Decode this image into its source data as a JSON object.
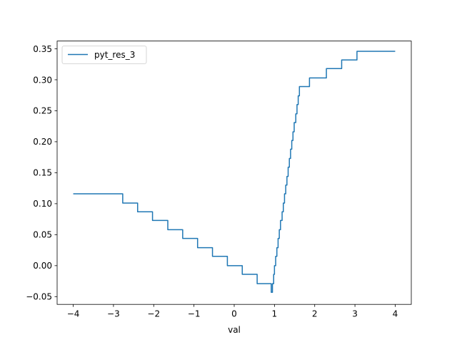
{
  "chart_data": {
    "type": "line",
    "title": "",
    "xlabel": "val",
    "ylabel": "",
    "xlim": [
      -4.4,
      4.4
    ],
    "ylim": [
      -0.0625,
      0.3625
    ],
    "xticks": [
      -4,
      -3,
      -2,
      -1,
      0,
      1,
      2,
      3,
      4
    ],
    "xtick_labels": [
      "−4",
      "−3",
      "−2",
      "−1",
      "0",
      "1",
      "2",
      "3",
      "4"
    ],
    "yticks": [
      -0.05,
      0.0,
      0.05,
      0.1,
      0.15,
      0.2,
      0.25,
      0.3,
      0.35
    ],
    "ytick_labels": [
      "−0.05",
      "0.00",
      "0.05",
      "0.10",
      "0.15",
      "0.20",
      "0.25",
      "0.30",
      "0.35"
    ],
    "grid": false,
    "legend_position": "upper-left",
    "series": [
      {
        "name": "pyt_res_3",
        "color": "#1f77b4",
        "step": "post",
        "x": [
          -4.0,
          -2.77,
          -2.4,
          -2.03,
          -1.65,
          -1.28,
          -0.91,
          -0.54,
          -0.17,
          0.2,
          0.57,
          0.92,
          0.95,
          0.98,
          1.0,
          1.03,
          1.06,
          1.09,
          1.12,
          1.15,
          1.19,
          1.22,
          1.25,
          1.28,
          1.31,
          1.34,
          1.37,
          1.4,
          1.43,
          1.46,
          1.49,
          1.53,
          1.56,
          1.59,
          1.62,
          1.65,
          1.68,
          1.71,
          1.87,
          2.29,
          2.67,
          3.05,
          4.0
        ],
        "y": [
          0.116,
          0.101,
          0.087,
          0.073,
          0.058,
          0.044,
          0.029,
          0.015,
          0.0,
          -0.014,
          -0.029,
          -0.043,
          -0.029,
          -0.014,
          0.0,
          0.015,
          0.029,
          0.044,
          0.058,
          0.073,
          0.087,
          0.101,
          0.116,
          0.13,
          0.144,
          0.159,
          0.173,
          0.188,
          0.202,
          0.216,
          0.231,
          0.245,
          0.26,
          0.274,
          0.289,
          0.289,
          0.289,
          0.289,
          0.303,
          0.318,
          0.332,
          0.346,
          0.346
        ]
      }
    ]
  }
}
